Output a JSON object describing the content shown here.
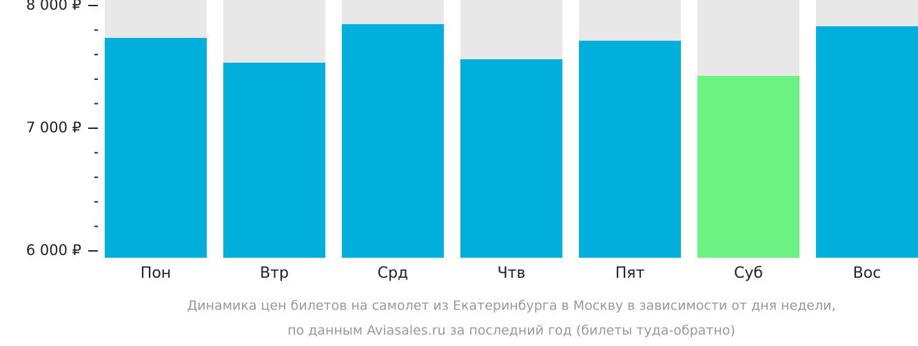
{
  "chart_data": {
    "type": "bar",
    "categories": [
      "Пон",
      "Втр",
      "Срд",
      "Чтв",
      "Пят",
      "Суб",
      "Вос"
    ],
    "values": [
      7736,
      7534,
      7848,
      7562,
      7713,
      7427,
      7831
    ],
    "colors": [
      "#00afdb",
      "#00afdb",
      "#00afdb",
      "#00afdb",
      "#00afdb",
      "#6cf283",
      "#00afdb"
    ],
    "background_color": "#e8e8e8",
    "ylim": [
      5944,
      8045
    ],
    "yticks": [
      {
        "value": 6000,
        "label": "6 000 ₽"
      },
      {
        "value": 7000,
        "label": "7 000 ₽"
      },
      {
        "value": 8000,
        "label": "8 000 ₽"
      }
    ],
    "yminorticks": [
      6200,
      6400,
      6600,
      6800,
      7200,
      7400,
      7600,
      7800
    ],
    "caption": [
      "Динамика цен билетов на самолет из Екатеринбурга в Москву в зависимости от дня недели,",
      "по данным Aviasales.ru за последний год (билеты туда-обратно)"
    ]
  }
}
